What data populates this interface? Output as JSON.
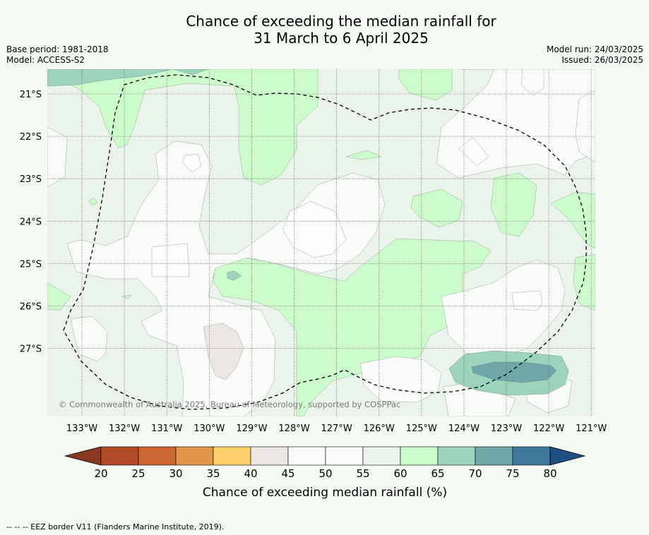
{
  "title_line1": "Chance of exceeding the median rainfall for",
  "title_line2": "31 March to 6 April 2025",
  "base_period": "Base period: 1981-2018",
  "model": "Model: ACCESS-S2",
  "model_run": "Model run: 24/03/2025",
  "issued": "Issued: 26/03/2025",
  "copyright": "© Commonwealth of Australia 2025, Bureau of Meteorology, supported by COSPPac",
  "lat_labels": [
    "21°S",
    "22°S",
    "23°S",
    "24°S",
    "25°S",
    "26°S",
    "27°S"
  ],
  "lon_labels": [
    "133°W",
    "132°W",
    "131°W",
    "130°W",
    "129°W",
    "128°W",
    "127°W",
    "126°W",
    "125°W",
    "124°W",
    "123°W",
    "122°W",
    "121°W"
  ],
  "colorbar": {
    "ticks": [
      "20",
      "25",
      "30",
      "35",
      "40",
      "45",
      "50",
      "55",
      "60",
      "65",
      "70",
      "75",
      "80"
    ],
    "colors": [
      "#b04a26",
      "#cd6633",
      "#e0954a",
      "#fdd06a",
      "#ece7e2",
      "#f8fbf8",
      "#f8fbf8",
      "#eaf4ea",
      "#ccfccc",
      "#9dd2bc",
      "#6fa7a9",
      "#3f789a"
    ],
    "low_color": "#8a3820",
    "high_color": "#1d4f82",
    "label": "Chance of exceeding median rainfall (%)"
  },
  "footer": "--  --  -- EEZ border V11 (Flanders Marine Institute, 2019)."
}
